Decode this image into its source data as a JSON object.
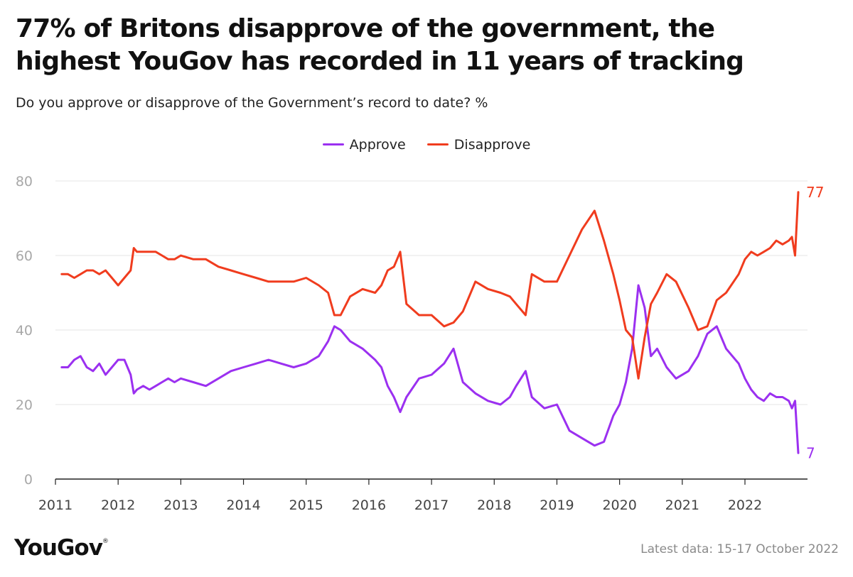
{
  "title_lines": [
    "77% of Britons disapprove of the government, the",
    "highest YouGov has recorded in 11 years of tracking"
  ],
  "subtitle": "Do you approve or disapprove of the Government’s record to date? %",
  "footer": {
    "logo": "YouGov",
    "logo_mark": "®",
    "note": "Latest data: 15-17 October 2022"
  },
  "chart_data": {
    "type": "line",
    "title": "77% of Britons disapprove of the government, the highest YouGov has recorded in 11 years of tracking",
    "subtitle": "Do you approve or disapprove of the Government’s record to date? %",
    "xlabel": "",
    "ylabel": "",
    "ylim": [
      0,
      80
    ],
    "xlim": [
      2011,
      2022.95
    ],
    "yticks": [
      0,
      20,
      40,
      60,
      80
    ],
    "xticks": [
      2011,
      2012,
      2013,
      2014,
      2015,
      2016,
      2017,
      2018,
      2019,
      2020,
      2021,
      2022
    ],
    "grid": "horizontal",
    "legend": "top-center",
    "end_labels": [
      {
        "series": "Approve",
        "text": "7"
      },
      {
        "series": "Disapprove",
        "text": "77"
      }
    ],
    "series": [
      {
        "name": "Approve",
        "color": "#9b30f0",
        "x": [
          2011.1,
          2011.2,
          2011.3,
          2011.4,
          2011.5,
          2011.6,
          2011.7,
          2011.8,
          2011.9,
          2012.0,
          2012.1,
          2012.2,
          2012.25,
          2012.3,
          2012.4,
          2012.5,
          2012.6,
          2012.7,
          2012.8,
          2012.9,
          2013.0,
          2013.2,
          2013.4,
          2013.6,
          2013.8,
          2014.0,
          2014.2,
          2014.4,
          2014.6,
          2014.8,
          2015.0,
          2015.2,
          2015.35,
          2015.45,
          2015.55,
          2015.7,
          2015.9,
          2016.1,
          2016.2,
          2016.3,
          2016.4,
          2016.5,
          2016.6,
          2016.8,
          2017.0,
          2017.2,
          2017.35,
          2017.5,
          2017.7,
          2017.9,
          2018.1,
          2018.25,
          2018.35,
          2018.5,
          2018.6,
          2018.8,
          2019.0,
          2019.2,
          2019.4,
          2019.6,
          2019.75,
          2019.9,
          2020.0,
          2020.1,
          2020.2,
          2020.3,
          2020.4,
          2020.5,
          2020.6,
          2020.75,
          2020.9,
          2021.1,
          2021.25,
          2021.4,
          2021.55,
          2021.7,
          2021.9,
          2022.0,
          2022.1,
          2022.2,
          2022.3,
          2022.4,
          2022.5,
          2022.6,
          2022.7,
          2022.75,
          2022.8,
          2022.85
        ],
        "values": [
          30,
          30,
          32,
          33,
          30,
          29,
          31,
          28,
          30,
          32,
          32,
          28,
          23,
          24,
          25,
          24,
          25,
          26,
          27,
          26,
          27,
          26,
          25,
          27,
          29,
          30,
          31,
          32,
          31,
          30,
          31,
          33,
          37,
          41,
          40,
          37,
          35,
          32,
          30,
          25,
          22,
          18,
          22,
          27,
          28,
          31,
          35,
          26,
          23,
          21,
          20,
          22,
          25,
          29,
          22,
          19,
          20,
          13,
          11,
          9,
          10,
          17,
          20,
          26,
          35,
          52,
          46,
          33,
          35,
          30,
          27,
          29,
          33,
          39,
          41,
          35,
          31,
          27,
          24,
          22,
          21,
          23,
          22,
          22,
          21,
          19,
          21,
          7
        ]
      },
      {
        "name": "Disapprove",
        "color": "#f03c1e",
        "x": [
          2011.1,
          2011.2,
          2011.3,
          2011.4,
          2011.5,
          2011.6,
          2011.7,
          2011.8,
          2011.9,
          2012.0,
          2012.1,
          2012.2,
          2012.25,
          2012.3,
          2012.4,
          2012.5,
          2012.6,
          2012.7,
          2012.8,
          2012.9,
          2013.0,
          2013.2,
          2013.4,
          2013.6,
          2013.8,
          2014.0,
          2014.2,
          2014.4,
          2014.6,
          2014.8,
          2015.0,
          2015.2,
          2015.35,
          2015.45,
          2015.55,
          2015.7,
          2015.9,
          2016.1,
          2016.2,
          2016.3,
          2016.4,
          2016.5,
          2016.6,
          2016.8,
          2017.0,
          2017.2,
          2017.35,
          2017.5,
          2017.7,
          2017.9,
          2018.1,
          2018.25,
          2018.35,
          2018.5,
          2018.6,
          2018.8,
          2019.0,
          2019.2,
          2019.4,
          2019.6,
          2019.75,
          2019.9,
          2020.0,
          2020.1,
          2020.2,
          2020.3,
          2020.4,
          2020.5,
          2020.6,
          2020.75,
          2020.9,
          2021.1,
          2021.25,
          2021.4,
          2021.55,
          2021.7,
          2021.9,
          2022.0,
          2022.1,
          2022.2,
          2022.3,
          2022.4,
          2022.5,
          2022.6,
          2022.7,
          2022.75,
          2022.8,
          2022.85
        ],
        "values": [
          55,
          55,
          54,
          55,
          56,
          56,
          55,
          56,
          54,
          52,
          54,
          56,
          62,
          61,
          61,
          61,
          61,
          60,
          59,
          59,
          60,
          59,
          59,
          57,
          56,
          55,
          54,
          53,
          53,
          53,
          54,
          52,
          50,
          44,
          44,
          49,
          51,
          50,
          52,
          56,
          57,
          61,
          47,
          44,
          44,
          41,
          42,
          45,
          53,
          51,
          50,
          49,
          47,
          44,
          55,
          53,
          53,
          60,
          67,
          72,
          64,
          55,
          48,
          40,
          38,
          27,
          38,
          47,
          50,
          55,
          53,
          46,
          40,
          41,
          48,
          50,
          55,
          59,
          61,
          60,
          61,
          62,
          64,
          63,
          64,
          65,
          60,
          77
        ]
      }
    ]
  }
}
